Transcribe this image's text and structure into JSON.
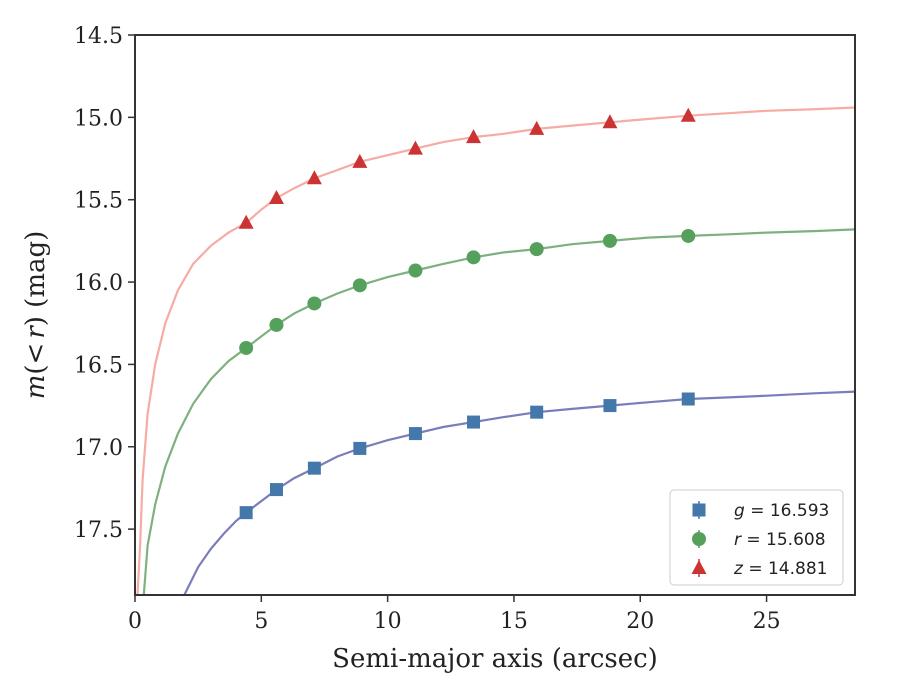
{
  "chart_data": {
    "type": "scatter",
    "title": "",
    "xlabel": "Semi-major axis (arcsec)",
    "ylabel": "m(< r) (mag)",
    "ylabel_parts": {
      "m": "m",
      "open": "(",
      "lt": "<",
      "r": "r",
      "close": ")",
      "unit": " (mag)"
    },
    "xlim": [
      0,
      28.5
    ],
    "ylim": [
      17.9,
      14.5
    ],
    "y_inverted": true,
    "x_ticks": [
      0,
      5,
      10,
      15,
      20,
      25
    ],
    "x_tick_labels": [
      "0",
      "5",
      "10",
      "15",
      "20",
      "25"
    ],
    "y_ticks": [
      14.5,
      15.0,
      15.5,
      16.0,
      16.5,
      17.0,
      17.5
    ],
    "y_tick_labels": [
      "14.5",
      "15.0",
      "15.5",
      "16.0",
      "16.5",
      "17.0",
      "17.5"
    ],
    "grid": false,
    "legend_position": "bottom-right",
    "series": [
      {
        "name": "g",
        "label_var": "g",
        "label_value": "= 16.593",
        "marker": "square",
        "color": "#4477aa",
        "curve_color": "#7b7dba",
        "x": [
          4.4,
          5.6,
          7.1,
          8.9,
          11.1,
          13.4,
          15.9,
          18.8,
          21.9
        ],
        "y": [
          17.4,
          17.26,
          17.13,
          17.01,
          16.92,
          16.85,
          16.79,
          16.75,
          16.71
        ],
        "curve_x": [
          1.95,
          2.5,
          3.0,
          3.5,
          4.0,
          4.4,
          5.0,
          5.6,
          6.3,
          7.1,
          8.0,
          8.9,
          10.0,
          11.1,
          12.2,
          13.4,
          14.6,
          15.9,
          17.3,
          18.8,
          20.3,
          21.9,
          23.5,
          25.0,
          27.0,
          28.5
        ],
        "curve_y": [
          17.9,
          17.73,
          17.62,
          17.53,
          17.45,
          17.4,
          17.33,
          17.26,
          17.19,
          17.13,
          17.06,
          17.01,
          16.96,
          16.92,
          16.88,
          16.85,
          16.82,
          16.79,
          16.77,
          16.75,
          16.73,
          16.71,
          16.7,
          16.69,
          16.675,
          16.665
        ]
      },
      {
        "name": "r",
        "label_var": "r",
        "label_value": "= 15.608",
        "marker": "circle",
        "color": "#55a05a",
        "curve_color": "#7fb07f",
        "x": [
          4.4,
          5.6,
          7.1,
          8.9,
          11.1,
          13.4,
          15.9,
          18.8,
          21.9
        ],
        "y": [
          16.4,
          16.26,
          16.13,
          16.02,
          15.93,
          15.85,
          15.8,
          15.75,
          15.72
        ],
        "curve_x": [
          0.35,
          0.5,
          0.8,
          1.2,
          1.7,
          2.3,
          3.0,
          3.7,
          4.4,
          5.0,
          5.6,
          6.3,
          7.1,
          8.0,
          8.9,
          10.0,
          11.1,
          12.2,
          13.4,
          14.6,
          15.9,
          17.3,
          18.8,
          20.3,
          21.9,
          23.5,
          25.0,
          27.0,
          28.5
        ],
        "curve_y": [
          17.9,
          17.6,
          17.35,
          17.12,
          16.92,
          16.74,
          16.59,
          16.48,
          16.4,
          16.33,
          16.26,
          16.19,
          16.13,
          16.07,
          16.02,
          15.97,
          15.93,
          15.89,
          15.85,
          15.82,
          15.8,
          15.77,
          15.75,
          15.73,
          15.72,
          15.71,
          15.7,
          15.69,
          15.68
        ]
      },
      {
        "name": "z",
        "label_var": "z",
        "label_value": "= 14.881",
        "marker": "triangle",
        "color": "#cc3333",
        "curve_color": "#f5aca4",
        "x": [
          4.4,
          5.6,
          7.1,
          8.9,
          11.1,
          13.4,
          15.9,
          18.8,
          21.9
        ],
        "y": [
          15.64,
          15.49,
          15.37,
          15.27,
          15.19,
          15.12,
          15.07,
          15.03,
          14.99
        ],
        "curve_x": [
          0.1,
          0.2,
          0.3,
          0.5,
          0.8,
          1.2,
          1.7,
          2.3,
          3.0,
          3.7,
          4.4,
          5.0,
          5.6,
          6.3,
          7.1,
          8.0,
          8.9,
          10.0,
          11.1,
          12.2,
          13.4,
          14.6,
          15.9,
          17.3,
          18.8,
          20.3,
          21.9,
          23.5,
          25.0,
          27.0,
          28.5
        ],
        "curve_y": [
          17.9,
          17.6,
          17.2,
          16.8,
          16.5,
          16.25,
          16.05,
          15.89,
          15.78,
          15.7,
          15.64,
          15.56,
          15.49,
          15.43,
          15.37,
          15.32,
          15.27,
          15.23,
          15.19,
          15.15,
          15.12,
          15.1,
          15.07,
          15.05,
          15.03,
          15.01,
          14.99,
          14.975,
          14.96,
          14.95,
          14.94
        ]
      }
    ]
  }
}
